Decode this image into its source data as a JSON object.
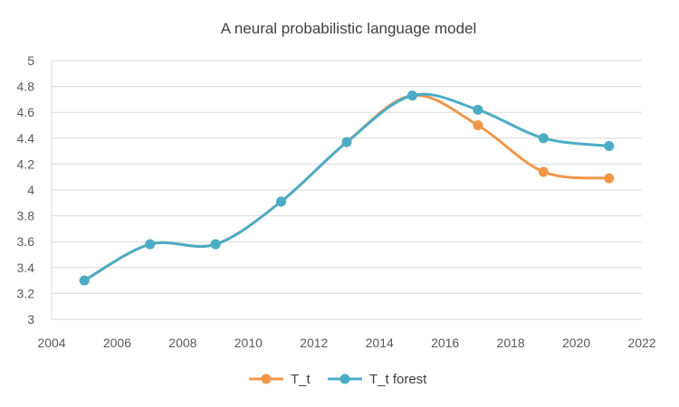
{
  "chart_data": {
    "type": "line",
    "title": "A neural probabilistic language model",
    "xlabel": "",
    "ylabel": "",
    "xlim": [
      2004,
      2022
    ],
    "ylim": [
      3,
      5
    ],
    "x_ticks": [
      2004,
      2006,
      2008,
      2010,
      2012,
      2014,
      2016,
      2018,
      2020,
      2022
    ],
    "y_ticks": [
      3,
      3.2,
      3.4,
      3.6,
      3.8,
      4,
      4.2,
      4.4,
      4.6,
      4.8,
      5
    ],
    "grid": "horizontal",
    "legend": "bottom",
    "smooth": true,
    "series": [
      {
        "name": "T_t",
        "color": "#F0974A",
        "points": [
          [
            2005,
            3.3
          ],
          [
            2007,
            3.58
          ],
          [
            2009,
            3.58
          ],
          [
            2011,
            3.91
          ],
          [
            2013,
            4.37
          ],
          [
            2015,
            4.73
          ],
          [
            2017,
            4.5
          ],
          [
            2019,
            4.14
          ],
          [
            2021,
            4.09
          ]
        ]
      },
      {
        "name": "T_t forest",
        "color": "#4BACC6",
        "points": [
          [
            2005,
            3.3
          ],
          [
            2007,
            3.58
          ],
          [
            2009,
            3.58
          ],
          [
            2011,
            3.91
          ],
          [
            2013,
            4.37
          ],
          [
            2015,
            4.73
          ],
          [
            2017,
            4.62
          ],
          [
            2019,
            4.4
          ],
          [
            2021,
            4.34
          ]
        ]
      }
    ]
  }
}
